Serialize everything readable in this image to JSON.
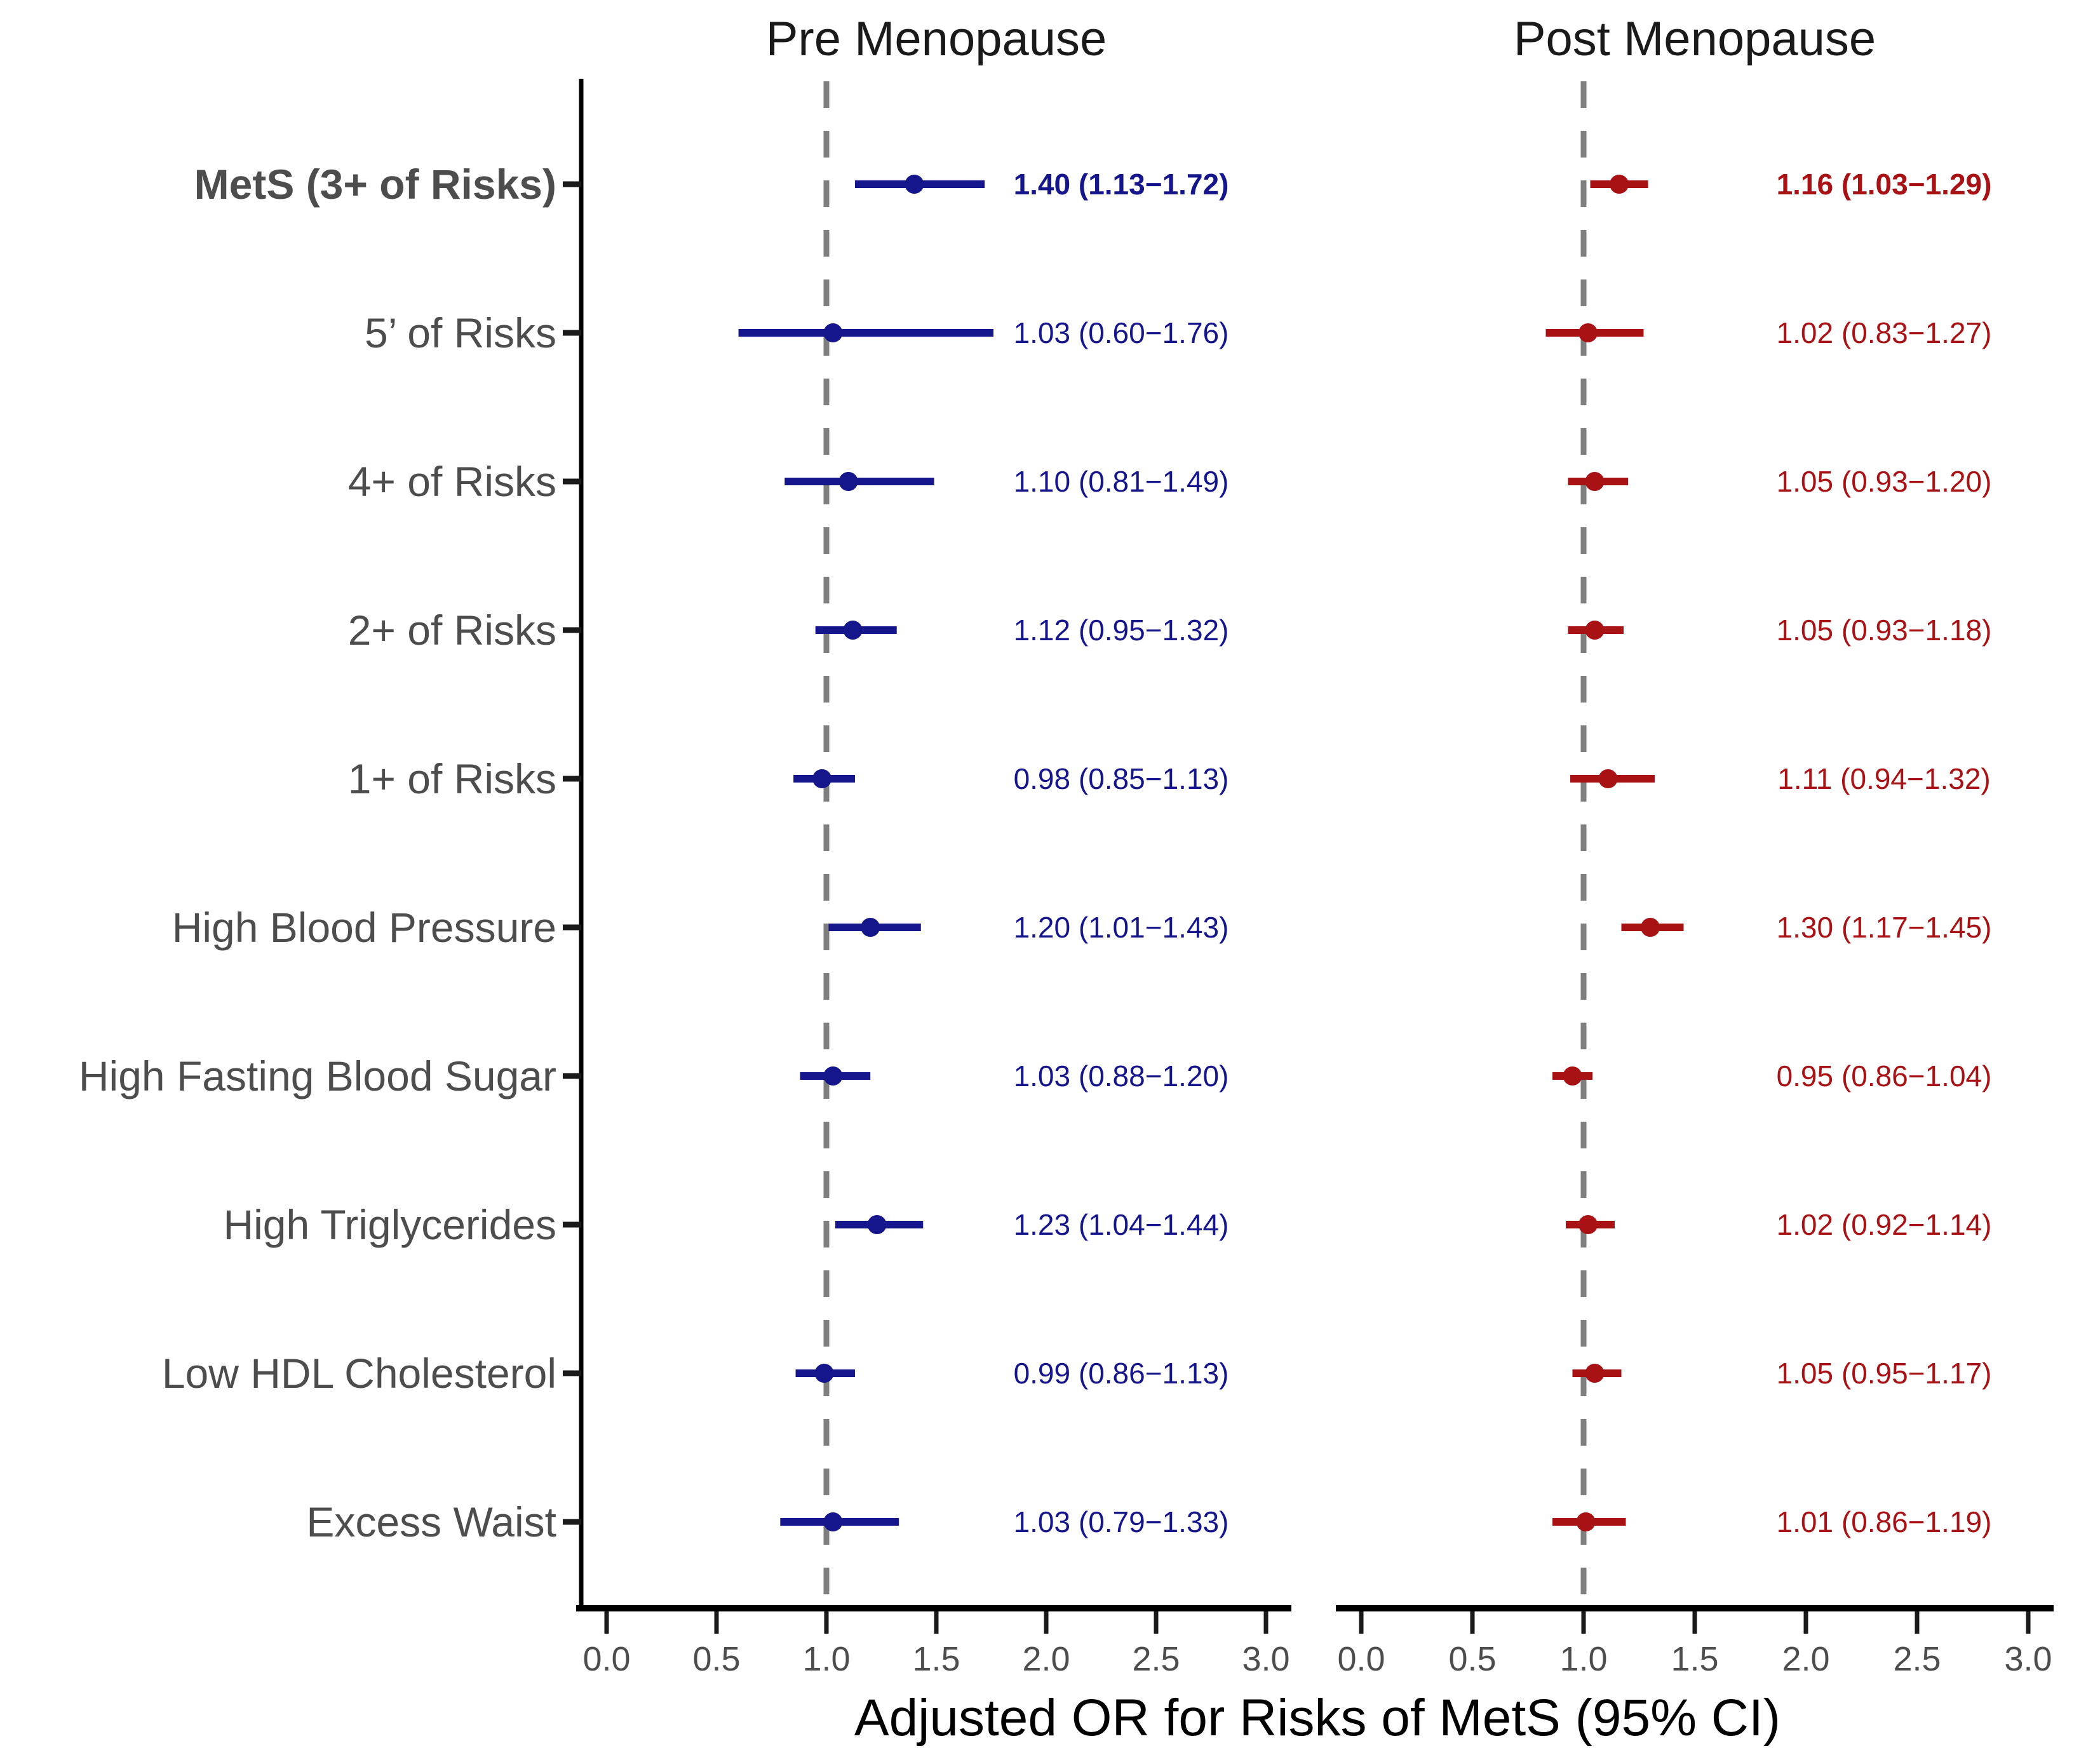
{
  "figure": {
    "xlabel": "Adjusted OR for Risks of MetS (95% CI)"
  },
  "chart_data": {
    "type": "forest",
    "title": "",
    "xlabel": "Adjusted OR for Risks of MetS (95% CI)",
    "xlim": [
      0,
      3
    ],
    "x_ticks": [
      0.0,
      0.5,
      1.0,
      1.5,
      2.0,
      2.5,
      3.0
    ],
    "x_tick_labels": [
      "0.0",
      "0.5",
      "1.0",
      "1.5",
      "2.0",
      "2.5",
      "3.0"
    ],
    "reference_line": 1.0,
    "grid": "off",
    "categories": [
      "MetS (3+ of Risks)",
      "5’ of Risks",
      "4+ of Risks",
      "2+ of Risks",
      "1+ of Risks",
      "High Blood Pressure",
      "High Fasting Blood Sugar",
      "High Triglycerides",
      "Low HDL Cholesterol",
      "Excess Waist"
    ],
    "bold_category_index": 0,
    "colors": {
      "pre": "#15158C",
      "post": "#A91215",
      "label_gray": "#4d4d4d",
      "tick_text": "#4d4d4d",
      "dashed_line": "#7f7f7f",
      "axis_line": "#000000"
    },
    "panels": [
      {
        "title": "Pre Menopause",
        "color": "#15158C",
        "series": [
          {
            "or": 1.4,
            "ci_low": 1.13,
            "ci_high": 1.72,
            "label": "1.40 (1.13−1.72)",
            "bold": true
          },
          {
            "or": 1.03,
            "ci_low": 0.6,
            "ci_high": 1.76,
            "label": "1.03 (0.60−1.76)",
            "bold": false
          },
          {
            "or": 1.1,
            "ci_low": 0.81,
            "ci_high": 1.49,
            "label": "1.10 (0.81−1.49)",
            "bold": false
          },
          {
            "or": 1.12,
            "ci_low": 0.95,
            "ci_high": 1.32,
            "label": "1.12 (0.95−1.32)",
            "bold": false
          },
          {
            "or": 0.98,
            "ci_low": 0.85,
            "ci_high": 1.13,
            "label": "0.98 (0.85−1.13)",
            "bold": false
          },
          {
            "or": 1.2,
            "ci_low": 1.01,
            "ci_high": 1.43,
            "label": "1.20 (1.01−1.43)",
            "bold": false
          },
          {
            "or": 1.03,
            "ci_low": 0.88,
            "ci_high": 1.2,
            "label": "1.03 (0.88−1.20)",
            "bold": false
          },
          {
            "or": 1.23,
            "ci_low": 1.04,
            "ci_high": 1.44,
            "label": "1.23 (1.04−1.44)",
            "bold": false
          },
          {
            "or": 0.99,
            "ci_low": 0.86,
            "ci_high": 1.13,
            "label": "0.99 (0.86−1.13)",
            "bold": false
          },
          {
            "or": 1.03,
            "ci_low": 0.79,
            "ci_high": 1.33,
            "label": "1.03 (0.79−1.33)",
            "bold": false
          }
        ]
      },
      {
        "title": "Post Menopause",
        "color": "#A91215",
        "series": [
          {
            "or": 1.16,
            "ci_low": 1.03,
            "ci_high": 1.29,
            "label": "1.16 (1.03−1.29)",
            "bold": true
          },
          {
            "or": 1.02,
            "ci_low": 0.83,
            "ci_high": 1.27,
            "label": "1.02 (0.83−1.27)",
            "bold": false
          },
          {
            "or": 1.05,
            "ci_low": 0.93,
            "ci_high": 1.2,
            "label": "1.05 (0.93−1.20)",
            "bold": false
          },
          {
            "or": 1.05,
            "ci_low": 0.93,
            "ci_high": 1.18,
            "label": "1.05 (0.93−1.18)",
            "bold": false
          },
          {
            "or": 1.11,
            "ci_low": 0.94,
            "ci_high": 1.32,
            "label": "1.11 (0.94−1.32)",
            "bold": false
          },
          {
            "or": 1.3,
            "ci_low": 1.17,
            "ci_high": 1.45,
            "label": "1.30 (1.17−1.45)",
            "bold": false
          },
          {
            "or": 0.95,
            "ci_low": 0.86,
            "ci_high": 1.04,
            "label": "0.95 (0.86−1.04)",
            "bold": false
          },
          {
            "or": 1.02,
            "ci_low": 0.92,
            "ci_high": 1.14,
            "label": "1.02 (0.92−1.14)",
            "bold": false
          },
          {
            "or": 1.05,
            "ci_low": 0.95,
            "ci_high": 1.17,
            "label": "1.05 (0.95−1.17)",
            "bold": false
          },
          {
            "or": 1.01,
            "ci_low": 0.86,
            "ci_high": 1.19,
            "label": "1.01 (0.86−1.19)",
            "bold": false
          }
        ]
      }
    ]
  }
}
